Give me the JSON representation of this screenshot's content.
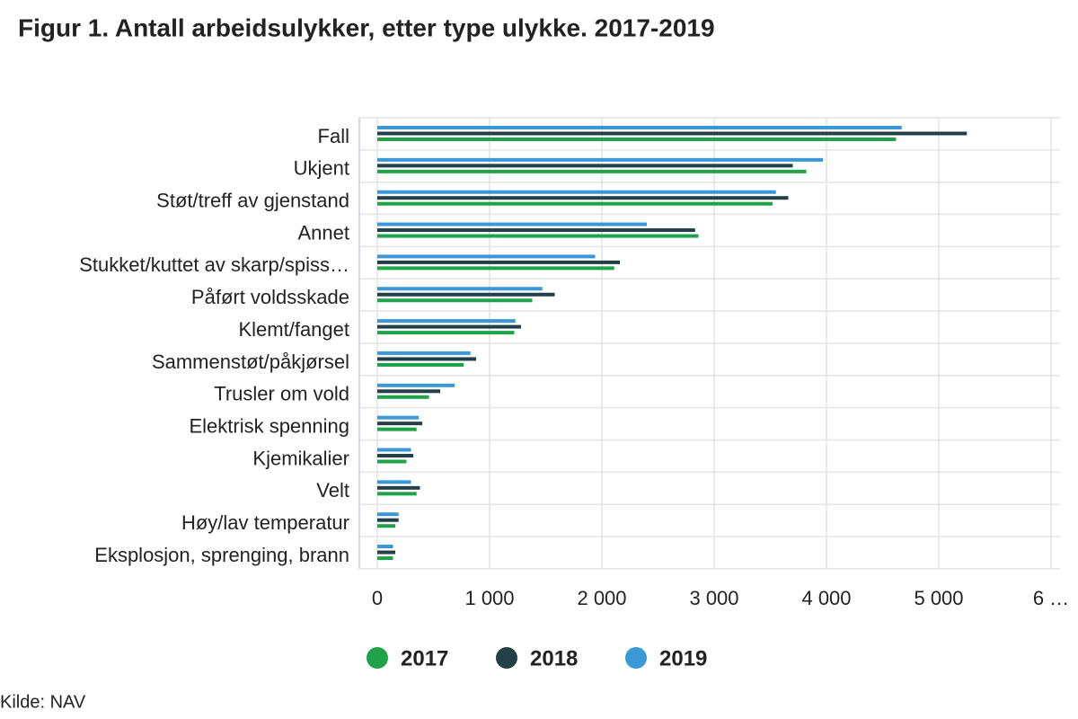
{
  "chart_data": {
    "type": "barh",
    "title": "Figur 1. Antall arbeidsulykker, etter type ulykke. 2017-2019",
    "source": "Kilde: NAV",
    "categories": [
      "Fall",
      "Ukjent",
      "Støt/treff av gjenstand",
      "Annet",
      "Stukket/kuttet av skarp/spiss…",
      "Påført voldsskade",
      "Klemt/fanget",
      "Sammenstøt/påkjørsel",
      "Trusler om vold",
      "Elektrisk spenning",
      "Kjemikalier",
      "Velt",
      "Høy/lav temperatur",
      "Eksplosjon, sprenging, brann"
    ],
    "series": [
      {
        "name": "2017",
        "color": "#1fa24a",
        "values": [
          4620,
          3820,
          3520,
          2860,
          2110,
          1380,
          1220,
          770,
          460,
          350,
          260,
          350,
          160,
          140
        ]
      },
      {
        "name": "2018",
        "color": "#233f47",
        "values": [
          5250,
          3700,
          3660,
          2830,
          2160,
          1580,
          1280,
          880,
          560,
          400,
          320,
          380,
          190,
          160
        ]
      },
      {
        "name": "2019",
        "color": "#3a98d6",
        "values": [
          4670,
          3970,
          3550,
          2400,
          1940,
          1470,
          1230,
          830,
          690,
          370,
          300,
          300,
          190,
          140
        ]
      }
    ],
    "xlim": [
      0,
      6000
    ],
    "xticks": [
      0,
      {
        "value": 1000,
        "label": "1 000"
      },
      {
        "value": 2000,
        "label": "2 000"
      },
      {
        "value": 3000,
        "label": "3 000"
      },
      {
        "value": 4000,
        "label": "4 000"
      },
      {
        "value": 5000,
        "label": "5 000"
      },
      {
        "value": 6000,
        "label": "6 …"
      }
    ],
    "grid": true
  }
}
